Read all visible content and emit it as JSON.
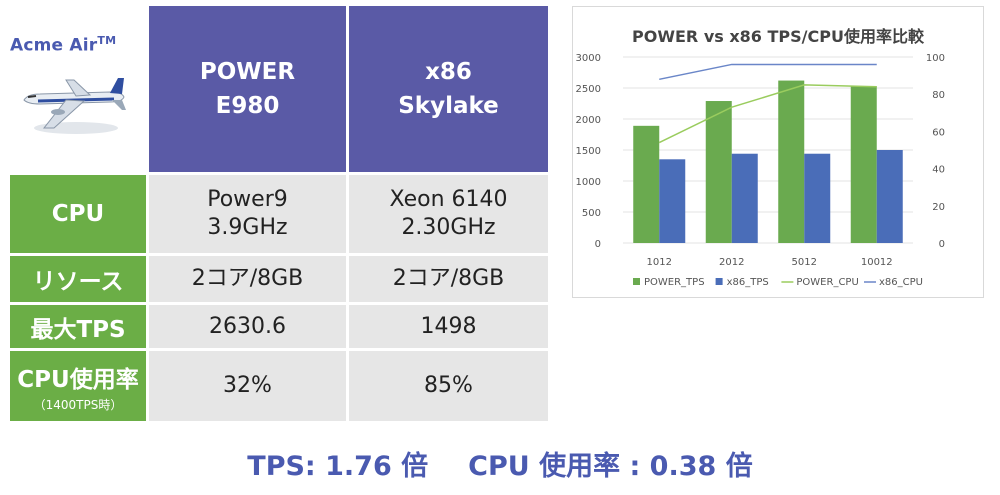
{
  "brand": {
    "name": "Acme Air",
    "trademark": "TM"
  },
  "columns": [
    {
      "line1": "POWER",
      "line2": "E980"
    },
    {
      "line1": "x86",
      "line2": "Skylake"
    }
  ],
  "rows": [
    {
      "label": "CPU",
      "sub": "",
      "values": [
        [
          "Power9",
          "3.9GHz"
        ],
        [
          "Xeon 6140",
          "2.30GHz"
        ]
      ]
    },
    {
      "label": "リソース",
      "sub": "",
      "values": [
        [
          "2コア/8GB"
        ],
        [
          "2コア/8GB"
        ]
      ]
    },
    {
      "label": "最大TPS",
      "sub": "",
      "values": [
        [
          "2630.6"
        ],
        [
          "1498"
        ]
      ]
    },
    {
      "label": "CPU使用率",
      "sub": "（1400TPS時）",
      "values": [
        [
          "32%"
        ],
        [
          "85%"
        ]
      ]
    }
  ],
  "summary": {
    "tps": "TPS: 1.76 倍",
    "cpu": "CPU 使用率 : 0.38 倍"
  },
  "colors": {
    "header": "#5a5aa6",
    "label": "#6bae46",
    "cell": "#e6e6e6",
    "accent": "#4a5ab0",
    "power_tps": "#6aaa4f",
    "x86_tps": "#4a6db8",
    "power_cpu": "#9acc5e",
    "x86_cpu": "#6a86c8"
  },
  "chart_data": {
    "type": "bar",
    "title": "POWER vs x86 TPS/CPU使用率比較",
    "categories": [
      "1012",
      "2012",
      "5012",
      "10012"
    ],
    "series": [
      {
        "name": "POWER_TPS",
        "kind": "bar",
        "axis": "left",
        "values": [
          1890,
          2290,
          2620,
          2530
        ]
      },
      {
        "name": "x86_TPS",
        "kind": "bar",
        "axis": "left",
        "values": [
          1350,
          1440,
          1440,
          1500
        ]
      },
      {
        "name": "POWER_CPU",
        "kind": "line",
        "axis": "right",
        "values": [
          54,
          73,
          85,
          84
        ]
      },
      {
        "name": "x86_CPU",
        "kind": "line",
        "axis": "right",
        "values": [
          88,
          96,
          96,
          96
        ]
      }
    ],
    "y_left": {
      "min": 0,
      "max": 3000,
      "ticks": [
        "0",
        "500",
        "1000",
        "1500",
        "2000",
        "2500",
        "3000"
      ]
    },
    "y_right": {
      "min": 0,
      "max": 100,
      "ticks": [
        "0",
        "20",
        "40",
        "60",
        "80",
        "100"
      ]
    },
    "grid": true,
    "legend": "bottom"
  }
}
